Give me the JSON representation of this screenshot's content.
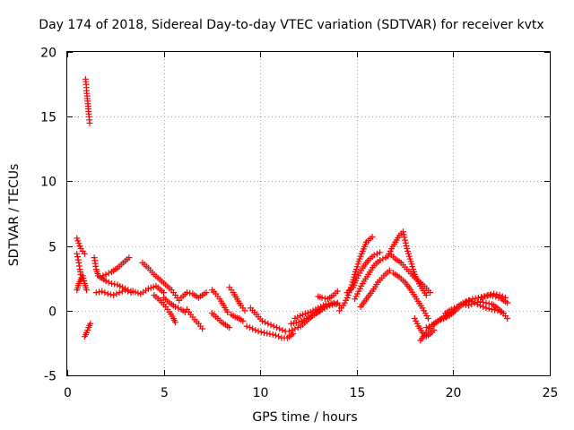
{
  "chart_data": {
    "type": "scatter",
    "title": "Day 174 of 2018, Sidereal Day-to-day VTEC variation (SDTVAR) for receiver kvtx",
    "xlabel": "GPS time / hours",
    "ylabel": "SDTVAR / TECUs",
    "xlim": [
      0,
      25
    ],
    "ylim": [
      -5,
      20
    ],
    "x_ticks": [
      "0",
      "5",
      "10",
      "15",
      "20",
      "25"
    ],
    "y_ticks": [
      "-5",
      "0",
      "5",
      "10",
      "15",
      "20"
    ],
    "grid": true,
    "marker": "plus",
    "color": "#ff0000",
    "series": [
      {
        "name": "SDTVAR",
        "segments": [
          {
            "x": [
              0.95,
              0.98,
              1.0,
              1.03,
              1.05,
              1.08,
              1.1,
              1.13,
              1.16
            ],
            "y": [
              17.9,
              17.5,
              17.0,
              16.6,
              16.2,
              15.8,
              15.4,
              15.0,
              14.5
            ]
          },
          {
            "x": [
              0.5,
              0.6,
              0.7,
              0.8,
              0.9
            ],
            "y": [
              5.6,
              5.2,
              4.8,
              4.6,
              4.4
            ]
          },
          {
            "x": [
              0.5,
              0.6,
              0.65,
              0.7,
              0.75
            ],
            "y": [
              4.4,
              3.7,
              3.2,
              2.8,
              2.5
            ]
          },
          {
            "x": [
              0.5,
              0.6,
              0.7,
              0.8,
              0.9,
              1.0
            ],
            "y": [
              1.6,
              2.1,
              2.4,
              2.7,
              2.1,
              1.6
            ]
          },
          {
            "x": [
              0.9,
              1.0,
              1.1,
              1.2
            ],
            "y": [
              -2.0,
              -1.7,
              -1.3,
              -1.0
            ]
          },
          {
            "x": [
              1.4,
              1.5,
              1.6,
              1.8,
              2.0,
              2.3,
              2.6,
              3.0,
              3.3
            ],
            "y": [
              4.1,
              3.2,
              2.7,
              2.5,
              2.3,
              2.1,
              2.0,
              1.7,
              1.5
            ]
          },
          {
            "x": [
              1.7,
              2.0,
              2.3,
              2.6,
              2.9,
              3.2
            ],
            "y": [
              2.6,
              2.8,
              3.0,
              3.3,
              3.7,
              4.1
            ]
          },
          {
            "x": [
              1.5,
              1.8,
              2.1,
              2.4,
              2.7,
              3.0,
              3.3
            ],
            "y": [
              1.4,
              1.5,
              1.3,
              1.2,
              1.4,
              1.6,
              1.4
            ]
          },
          {
            "x": [
              3.4,
              3.8,
              4.2,
              4.6,
              5.0
            ],
            "y": [
              1.5,
              1.3,
              1.7,
              1.9,
              1.4
            ]
          },
          {
            "x": [
              3.9,
              4.2,
              4.5,
              4.8,
              5.1,
              5.4,
              5.6,
              5.8
            ],
            "y": [
              3.7,
              3.3,
              2.8,
              2.4,
              2.0,
              1.6,
              1.2,
              0.8
            ]
          },
          {
            "x": [
              4.5,
              4.8,
              5.1,
              5.3,
              5.5,
              5.6
            ],
            "y": [
              1.2,
              0.8,
              0.3,
              -0.1,
              -0.6,
              -0.9
            ]
          },
          {
            "x": [
              5.0,
              5.3,
              5.6,
              5.9,
              6.1
            ],
            "y": [
              1.0,
              0.6,
              0.3,
              0.1,
              -0.1
            ]
          },
          {
            "x": [
              5.9,
              6.2,
              6.5,
              6.8,
              7.0,
              7.2
            ],
            "y": [
              1.0,
              1.4,
              1.3,
              1.0,
              1.2,
              1.4
            ]
          },
          {
            "x": [
              6.2,
              6.4,
              6.6,
              6.8,
              7.0
            ],
            "y": [
              0.1,
              -0.3,
              -0.7,
              -1.0,
              -1.4
            ]
          },
          {
            "x": [
              7.5,
              7.7,
              7.9,
              8.1,
              8.3
            ],
            "y": [
              1.6,
              1.3,
              0.9,
              0.4,
              -0.1
            ]
          },
          {
            "x": [
              7.5,
              7.8,
              8.0,
              8.2,
              8.4
            ],
            "y": [
              -0.2,
              -0.6,
              -0.9,
              -1.1,
              -1.3
            ]
          },
          {
            "x": [
              8.4,
              8.6,
              8.8,
              9.0,
              9.2
            ],
            "y": [
              1.8,
              1.4,
              0.9,
              0.4,
              0.0
            ]
          },
          {
            "x": [
              8.5,
              8.7,
              8.9,
              9.1
            ],
            "y": [
              -0.3,
              -0.5,
              -0.6,
              -0.8
            ]
          },
          {
            "x": [
              9.3,
              9.6,
              9.9,
              10.2,
              10.5,
              10.8,
              11.1,
              11.4,
              11.7
            ],
            "y": [
              -1.2,
              -1.4,
              -1.6,
              -1.7,
              -1.8,
              -1.9,
              -2.1,
              -2.1,
              -1.8
            ]
          },
          {
            "x": [
              9.5,
              9.8,
              10.1,
              10.4,
              10.7,
              11.0,
              11.3
            ],
            "y": [
              0.2,
              -0.3,
              -0.8,
              -1.0,
              -1.2,
              -1.4,
              -1.6
            ]
          },
          {
            "x": [
              11.5,
              11.8,
              12.1,
              12.4,
              12.7,
              13.0,
              13.3
            ],
            "y": [
              -1.6,
              -1.4,
              -1.2,
              -0.8,
              -0.4,
              -0.1,
              0.2
            ]
          },
          {
            "x": [
              11.6,
              12.0,
              12.4,
              12.8,
              13.2,
              13.6,
              14.0
            ],
            "y": [
              -1.0,
              -0.9,
              -0.6,
              -0.3,
              0.1,
              0.4,
              0.6
            ]
          },
          {
            "x": [
              11.8,
              12.2,
              12.6,
              13.0,
              13.4,
              13.8,
              14.1
            ],
            "y": [
              -0.6,
              -0.3,
              -0.1,
              0.2,
              0.5,
              0.6,
              0.4
            ]
          },
          {
            "x": [
              13.0,
              13.2,
              13.5,
              13.8,
              14.0
            ],
            "y": [
              1.1,
              1.0,
              0.9,
              1.2,
              1.5
            ]
          },
          {
            "x": [
              14.1,
              14.3,
              14.5,
              14.7,
              14.9,
              15.1,
              15.3,
              15.5,
              15.8
            ],
            "y": [
              0.0,
              0.4,
              1.0,
              1.8,
              2.8,
              3.8,
              4.6,
              5.3,
              5.7
            ]
          },
          {
            "x": [
              14.5,
              14.8,
              15.0,
              15.3,
              15.6,
              15.9,
              16.2
            ],
            "y": [
              1.4,
              1.8,
              2.5,
              3.3,
              3.9,
              4.3,
              4.5
            ]
          },
          {
            "x": [
              14.9,
              15.1,
              15.3,
              15.6,
              15.9,
              16.2,
              16.5
            ],
            "y": [
              0.9,
              1.5,
              2.1,
              2.8,
              3.5,
              3.9,
              4.1
            ]
          },
          {
            "x": [
              15.2,
              15.5,
              15.8,
              16.1,
              16.4,
              16.7
            ],
            "y": [
              0.3,
              0.9,
              1.5,
              2.2,
              2.7,
              3.1
            ]
          },
          {
            "x": [
              16.6,
              16.8,
              17.0,
              17.2,
              17.4,
              17.6,
              17.8,
              18.0,
              18.3,
              18.6
            ],
            "y": [
              4.2,
              4.8,
              5.3,
              5.8,
              6.1,
              4.8,
              3.8,
              2.8,
              1.9,
              1.2
            ]
          },
          {
            "x": [
              16.8,
              17.0,
              17.3,
              17.6,
              17.9,
              18.2,
              18.5,
              18.8
            ],
            "y": [
              4.3,
              4.0,
              3.7,
              3.2,
              2.7,
              2.3,
              1.9,
              1.4
            ]
          },
          {
            "x": [
              16.9,
              17.2,
              17.5,
              17.8,
              18.1,
              18.4,
              18.7
            ],
            "y": [
              2.9,
              2.6,
              2.2,
              1.6,
              0.9,
              0.2,
              -0.6
            ]
          },
          {
            "x": [
              18.0,
              18.2,
              18.4,
              18.6,
              18.8,
              19.0
            ],
            "y": [
              -0.6,
              -1.2,
              -1.7,
              -2.0,
              -1.8,
              -1.5
            ]
          },
          {
            "x": [
              18.3,
              18.6,
              18.9,
              19.2,
              19.5,
              19.8
            ],
            "y": [
              -2.3,
              -1.7,
              -1.2,
              -0.8,
              -0.5,
              -0.2
            ]
          },
          {
            "x": [
              18.6,
              18.9,
              19.2,
              19.5,
              19.8,
              20.1
            ],
            "y": [
              -1.3,
              -1.1,
              -0.8,
              -0.6,
              -0.3,
              0.0
            ]
          },
          {
            "x": [
              19.5,
              19.8,
              20.1,
              20.4,
              20.7,
              21.0,
              21.3,
              21.6,
              21.9,
              22.2,
              22.5,
              22.8
            ],
            "y": [
              -0.6,
              -0.4,
              0.0,
              0.4,
              0.7,
              0.9,
              1.0,
              1.1,
              1.2,
              1.1,
              0.9,
              0.6
            ]
          },
          {
            "x": [
              19.6,
              19.9,
              20.2,
              20.5,
              20.8,
              21.1,
              21.4,
              21.7,
              22.0,
              22.3,
              22.6
            ],
            "y": [
              -0.2,
              0.1,
              0.3,
              0.6,
              0.8,
              0.6,
              0.4,
              0.2,
              0.1,
              0.0,
              -0.2
            ]
          },
          {
            "x": [
              20.5,
              20.8,
              21.1,
              21.4,
              21.7,
              22.0,
              22.3,
              22.6,
              22.8
            ],
            "y": [
              0.5,
              0.4,
              0.6,
              0.7,
              0.6,
              0.5,
              0.2,
              -0.2,
              -0.6
            ]
          },
          {
            "x": [
              21.5,
              21.8,
              22.1,
              22.4,
              22.7
            ],
            "y": [
              1.0,
              1.2,
              1.3,
              1.2,
              1.0
            ]
          }
        ]
      }
    ]
  }
}
